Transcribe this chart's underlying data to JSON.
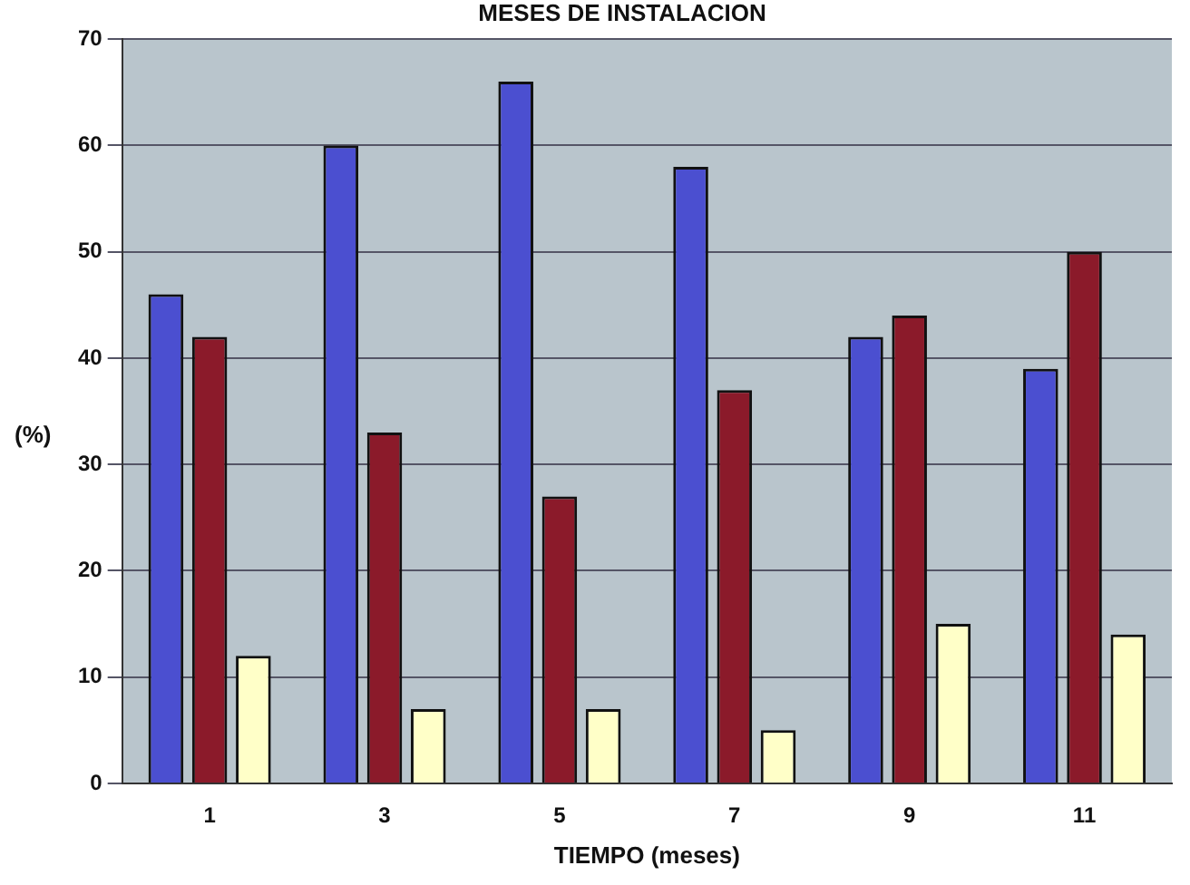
{
  "chart_data": {
    "type": "bar",
    "title": "MESES DE INSTALACION",
    "xlabel": "TIEMPO (meses)",
    "ylabel": "(%)",
    "categories": [
      "1",
      "3",
      "5",
      "7",
      "9",
      "11"
    ],
    "series": [
      {
        "color": "#4b4fd0",
        "values": [
          46,
          60,
          66,
          58,
          42,
          39
        ]
      },
      {
        "color": "#8b1a2a",
        "values": [
          42,
          33,
          27,
          37,
          44,
          50
        ]
      },
      {
        "color": "#ffffc8",
        "values": [
          12,
          7,
          7,
          5,
          15,
          14
        ]
      }
    ],
    "ylim": [
      0,
      70
    ],
    "yticks": [
      0,
      10,
      20,
      30,
      40,
      50,
      60,
      70
    ],
    "grid": "y",
    "legend": false
  }
}
